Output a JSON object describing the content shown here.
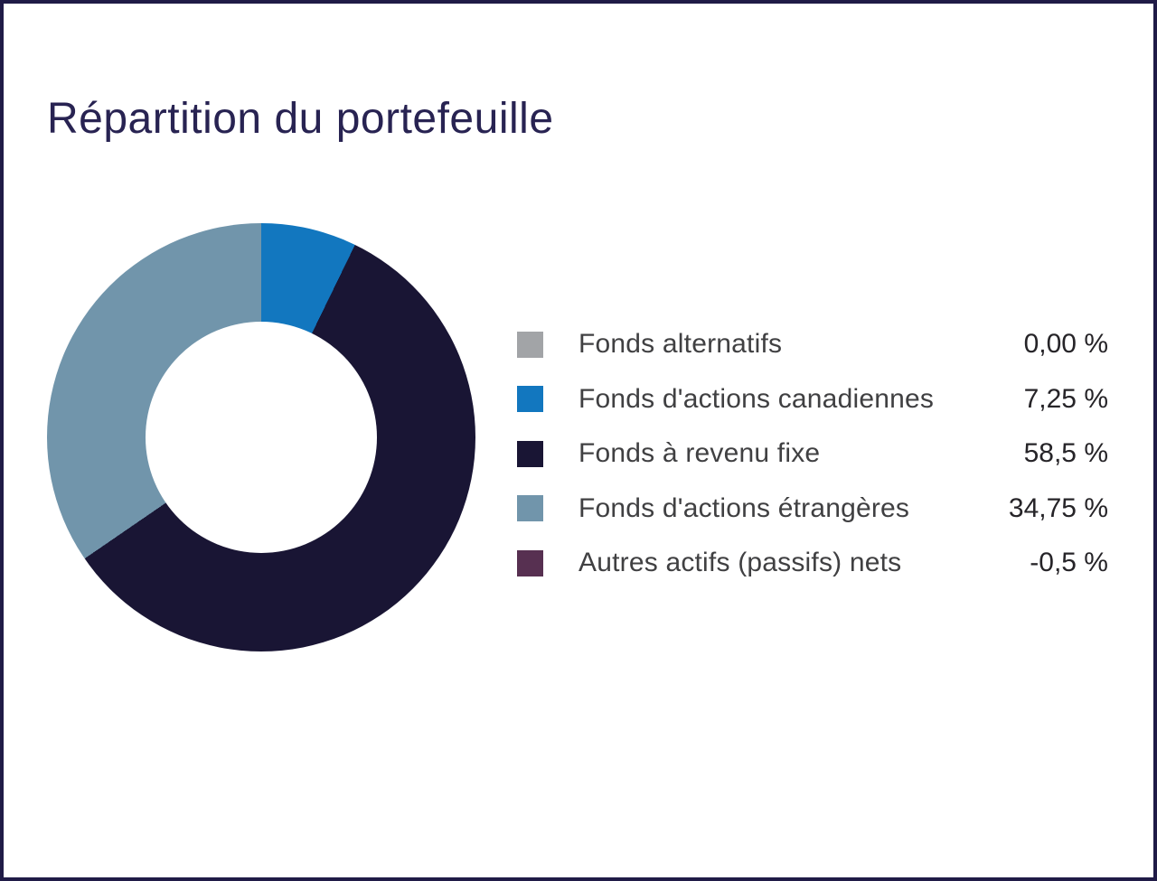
{
  "page": {
    "frame_border_color": "#201b47",
    "background_color": "#ffffff",
    "title_color": "#282352"
  },
  "chart_data": {
    "type": "pie",
    "title": "Répartition du portefeuille",
    "donut": true,
    "hole_ratio": 0.54,
    "start_angle_deg": 0,
    "direction": "clockwise",
    "legend_position": "right",
    "segments": [
      {
        "label": "Fonds alternatifs",
        "value": 0.0,
        "display_value": "0,00 %",
        "color": "#a2a4a7"
      },
      {
        "label": "Fonds d'actions canadiennes",
        "value": 7.25,
        "display_value": "7,25 %",
        "color": "#1277bf"
      },
      {
        "label": "Fonds à revenu fixe",
        "value": 58.5,
        "display_value": "58,5 %",
        "color": "#191534"
      },
      {
        "label": "Fonds d'actions étrangères",
        "value": 34.75,
        "display_value": "34,75 %",
        "color": "#7195ab"
      },
      {
        "label": "Autres actifs (passifs) nets",
        "value": -0.5,
        "display_value": "-0,5 %",
        "color": "#573051"
      }
    ]
  }
}
